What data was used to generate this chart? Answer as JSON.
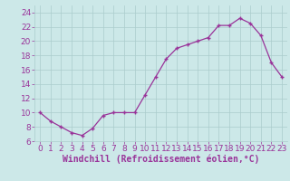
{
  "x": [
    0,
    1,
    2,
    3,
    4,
    5,
    6,
    7,
    8,
    9,
    10,
    11,
    12,
    13,
    14,
    15,
    16,
    17,
    18,
    19,
    20,
    21,
    22,
    23
  ],
  "y": [
    10,
    8.8,
    8,
    7.2,
    6.8,
    7.8,
    9.6,
    10,
    10,
    10,
    12.5,
    15,
    17.5,
    19,
    19.5,
    20,
    20.5,
    22.2,
    22.2,
    23.2,
    22.5,
    20.8,
    17,
    15
  ],
  "line_color": "#993399",
  "marker": "+",
  "bg_color": "#cce8e8",
  "grid_color": "#aacccc",
  "xlabel": "Windchill (Refroidissement éolien,°C)",
  "xlabel_color": "#993399",
  "ylim": [
    6,
    25
  ],
  "xlim": [
    -0.5,
    23.5
  ],
  "yticks": [
    6,
    8,
    10,
    12,
    14,
    16,
    18,
    20,
    22,
    24
  ],
  "xticks": [
    0,
    1,
    2,
    3,
    4,
    5,
    6,
    7,
    8,
    9,
    10,
    11,
    12,
    13,
    14,
    15,
    16,
    17,
    18,
    19,
    20,
    21,
    22,
    23
  ],
  "font_color": "#993399",
  "tick_font_size": 6.5,
  "xlabel_font_size": 7
}
